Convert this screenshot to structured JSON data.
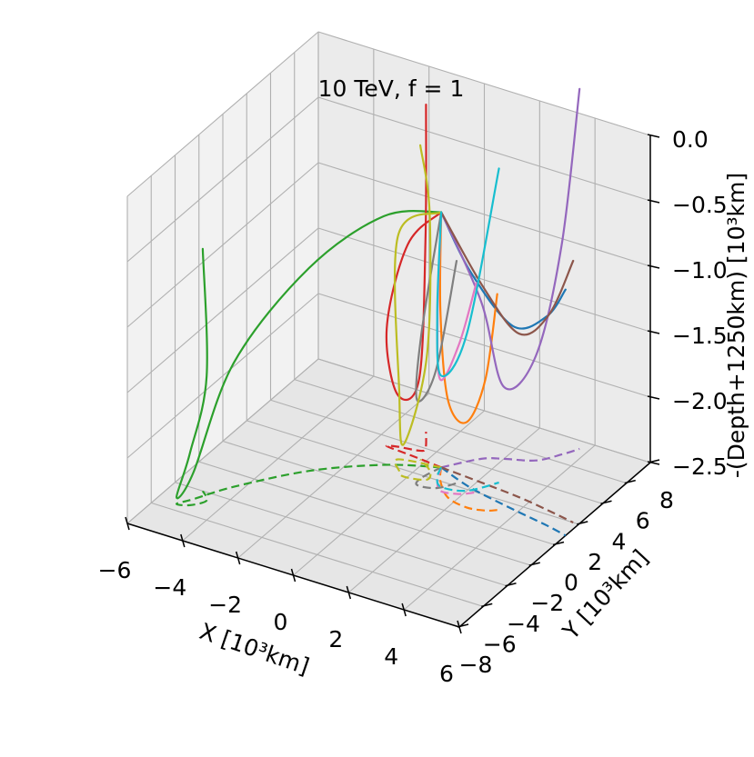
{
  "chart_data": {
    "type": "3d-line",
    "title": "10 TeV, f = 1",
    "xlabel": "X [10³km]",
    "ylabel": "Y [10³km]",
    "zlabel": "-(Depth+1250km) [10³km]",
    "xlim": [
      -6,
      6
    ],
    "ylim": [
      -8,
      8
    ],
    "zlim": [
      -2.5,
      0.0
    ],
    "xticks": [
      "−6",
      "−4",
      "−2",
      "0",
      "2",
      "4",
      "6"
    ],
    "yticks": [
      "−8",
      "−6",
      "−4",
      "−2",
      "0",
      "2",
      "4",
      "6",
      "8"
    ],
    "zticks": [
      "0.0",
      "−0.5",
      "−1.0",
      "−1.5",
      "−2.0",
      "−2.5"
    ],
    "grid": true,
    "origin": [
      0.6,
      3.0,
      -0.55
    ],
    "series": [
      {
        "color": "#1f77b4",
        "points": [
          [
            0.6,
            3.0,
            -0.55
          ],
          [
            2.0,
            2.2,
            -0.85
          ],
          [
            3.8,
            1.6,
            -1.1
          ],
          [
            5.2,
            1.2,
            -0.9
          ],
          [
            6.0,
            0.9,
            -0.62
          ]
        ]
      },
      {
        "color": "#ff7f0e",
        "points": [
          [
            0.6,
            3.0,
            -0.55
          ],
          [
            1.0,
            2.0,
            -1.2
          ],
          [
            1.7,
            1.0,
            -1.75
          ],
          [
            2.5,
            0.7,
            -1.85
          ],
          [
            3.1,
            0.9,
            -1.5
          ],
          [
            3.4,
            1.2,
            -0.85
          ]
        ]
      },
      {
        "color": "#2ca02c",
        "points": [
          [
            0.6,
            3.0,
            -0.55
          ],
          [
            -1.0,
            1.9,
            -0.6
          ],
          [
            -2.8,
            -0.2,
            -0.95
          ],
          [
            -4.3,
            -3.0,
            -1.55
          ],
          [
            -5.0,
            -4.8,
            -2.3
          ],
          [
            -5.3,
            -5.5,
            -2.45
          ],
          [
            -4.9,
            -5.3,
            -2.1
          ],
          [
            -4.6,
            -4.6,
            -1.55
          ],
          [
            -5.0,
            -4.0,
            -0.65
          ]
        ]
      },
      {
        "color": "#d62728",
        "points": [
          [
            0.6,
            3.0,
            -0.55
          ],
          [
            -0.7,
            3.2,
            -0.9
          ],
          [
            -1.5,
            3.3,
            -1.6
          ],
          [
            -1.2,
            3.5,
            -2.1
          ],
          [
            -0.5,
            3.7,
            -1.95
          ],
          [
            -0.4,
            4.0,
            -0.9
          ],
          [
            -0.9,
            5.2,
            0.0
          ]
        ]
      },
      {
        "color": "#9467bd",
        "points": [
          [
            0.6,
            3.0,
            -0.55
          ],
          [
            1.4,
            4.5,
            -1.3
          ],
          [
            2.0,
            5.0,
            -1.95
          ],
          [
            2.9,
            5.6,
            -1.7
          ],
          [
            3.4,
            6.6,
            -0.9
          ],
          [
            3.7,
            7.4,
            0.25
          ]
        ]
      },
      {
        "color": "#8c564b",
        "points": [
          [
            0.6,
            3.0,
            -0.55
          ],
          [
            2.2,
            2.8,
            -1.0
          ],
          [
            3.6,
            2.6,
            -1.25
          ],
          [
            4.8,
            2.3,
            -1.0
          ],
          [
            5.8,
            2.0,
            -0.5
          ]
        ]
      },
      {
        "color": "#e377c2",
        "points": [
          [
            0.6,
            3.0,
            -0.55
          ],
          [
            0.9,
            2.0,
            -1.25
          ],
          [
            1.3,
            1.3,
            -1.65
          ],
          [
            1.9,
            1.5,
            -1.35
          ],
          [
            2.3,
            2.0,
            -0.9
          ]
        ]
      },
      {
        "color": "#7f7f7f",
        "points": [
          [
            0.6,
            3.0,
            -0.55
          ],
          [
            0.4,
            1.8,
            -1.4
          ],
          [
            0.5,
            1.2,
            -1.85
          ],
          [
            1.1,
            1.4,
            -1.6
          ],
          [
            1.5,
            2.2,
            -0.8
          ]
        ]
      },
      {
        "color": "#bcbd22",
        "points": [
          [
            0.6,
            3.0,
            -0.55
          ],
          [
            -0.8,
            2.6,
            -0.8
          ],
          [
            -0.4,
            1.8,
            -1.9
          ],
          [
            -0.1,
            1.5,
            -2.25
          ],
          [
            0.6,
            1.8,
            -1.55
          ],
          [
            0.4,
            2.5,
            -0.55
          ],
          [
            -0.2,
            3.1,
            -0.1
          ]
        ]
      },
      {
        "color": "#17becf",
        "points": [
          [
            0.6,
            3.0,
            -0.55
          ],
          [
            0.8,
            2.2,
            -1.25
          ],
          [
            1.2,
            1.6,
            -1.65
          ],
          [
            2.0,
            1.9,
            -1.3
          ],
          [
            2.6,
            3.2,
            -0.1
          ]
        ]
      }
    ]
  }
}
